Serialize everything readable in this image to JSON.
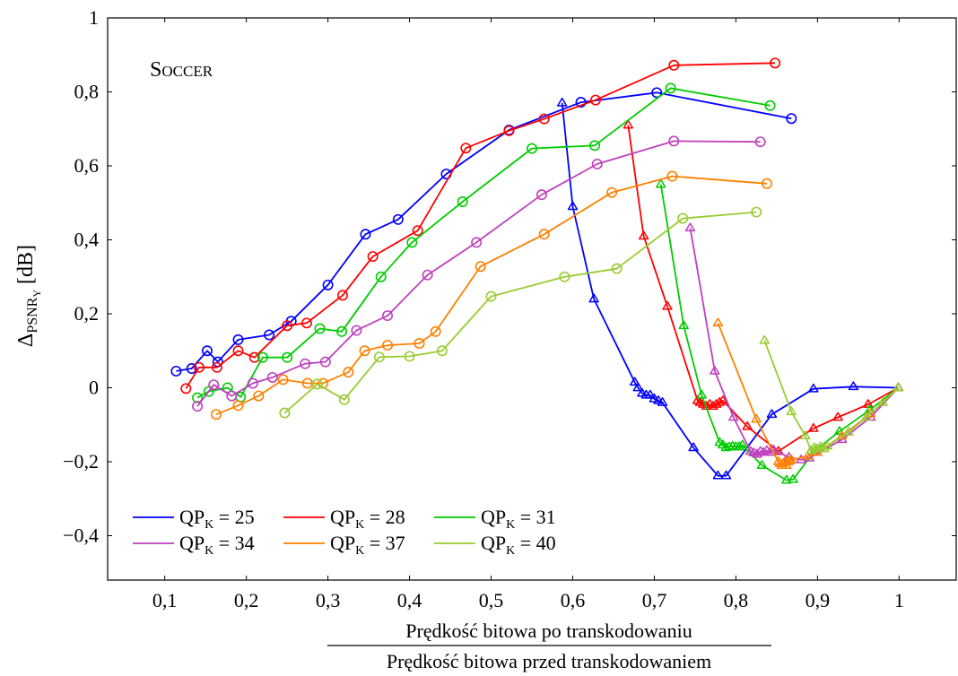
{
  "chart_data": {
    "type": "line",
    "annotation": {
      "main": "S",
      "rest": "OCCER"
    },
    "ylabel": {
      "main": "Δ",
      "sub": "PSNR",
      "subsub": "Y",
      "unit": "[dB]"
    },
    "xlabel": {
      "numerator": "Prędkość bitowa po transkodowaniu",
      "denominator": "Prędkość bitowa przed transkodowaniem"
    },
    "xlim": [
      0.03,
      1.07
    ],
    "ylim": [
      -0.52,
      1.0
    ],
    "xticks": [
      0.1,
      0.2,
      0.3,
      0.4,
      0.5,
      0.6,
      0.7,
      0.8,
      0.9,
      1
    ],
    "xtick_labels": [
      "0,1",
      "0,2",
      "0,3",
      "0,4",
      "0,5",
      "0,6",
      "0,7",
      "0,8",
      "0,9",
      "1"
    ],
    "yticks": [
      -0.4,
      -0.2,
      0,
      0.2,
      0.4,
      0.6,
      0.8,
      1
    ],
    "ytick_labels": [
      "−0,4",
      "−0,2",
      "0",
      "0,2",
      "0,4",
      "0,6",
      "0,8",
      "1"
    ],
    "legend_position": "bottom-left",
    "series": [
      {
        "name": "QP_K = 25",
        "label_main": "QP",
        "label_sub": "K",
        "label_val": " = 25",
        "color": "#0000ff",
        "circles": [
          [
            0.114,
            0.045
          ],
          [
            0.133,
            0.052
          ],
          [
            0.152,
            0.1
          ],
          [
            0.165,
            0.07
          ],
          [
            0.19,
            0.13
          ],
          [
            0.228,
            0.143
          ],
          [
            0.255,
            0.18
          ],
          [
            0.3,
            0.278
          ],
          [
            0.346,
            0.415
          ],
          [
            0.386,
            0.455
          ],
          [
            0.445,
            0.578
          ],
          [
            0.522,
            0.697
          ],
          [
            0.61,
            0.772
          ],
          [
            0.703,
            0.798
          ],
          [
            0.868,
            0.728
          ]
        ],
        "triangles": [
          [
            0.587,
            0.77
          ],
          [
            0.6,
            0.49
          ],
          [
            0.626,
            0.24
          ],
          [
            0.676,
            0.015
          ],
          [
            0.68,
            0.0
          ],
          [
            0.685,
            -0.015
          ],
          [
            0.69,
            -0.02
          ],
          [
            0.695,
            -0.02
          ],
          [
            0.7,
            -0.03
          ],
          [
            0.705,
            -0.035
          ],
          [
            0.71,
            -0.04
          ],
          [
            0.748,
            -0.162
          ],
          [
            0.778,
            -0.238
          ],
          [
            0.788,
            -0.238
          ],
          [
            0.844,
            -0.072
          ],
          [
            0.895,
            -0.003
          ],
          [
            0.944,
            0.003
          ],
          [
            0.999,
            0.0
          ]
        ]
      },
      {
        "name": "QP_K = 28",
        "label_main": "QP",
        "label_sub": "K",
        "label_val": " = 28",
        "color": "#ff0000",
        "circles": [
          [
            0.126,
            -0.002
          ],
          [
            0.142,
            0.055
          ],
          [
            0.164,
            0.055
          ],
          [
            0.19,
            0.1
          ],
          [
            0.21,
            0.082
          ],
          [
            0.25,
            0.168
          ],
          [
            0.274,
            0.175
          ],
          [
            0.318,
            0.25
          ],
          [
            0.355,
            0.355
          ],
          [
            0.41,
            0.425
          ],
          [
            0.469,
            0.648
          ],
          [
            0.522,
            0.695
          ],
          [
            0.565,
            0.727
          ],
          [
            0.628,
            0.778
          ],
          [
            0.724,
            0.872
          ],
          [
            0.848,
            0.878
          ]
        ],
        "triangles": [
          [
            0.668,
            0.71
          ],
          [
            0.687,
            0.41
          ],
          [
            0.716,
            0.22
          ],
          [
            0.753,
            -0.035
          ],
          [
            0.756,
            -0.04
          ],
          [
            0.76,
            -0.045
          ],
          [
            0.764,
            -0.05
          ],
          [
            0.768,
            -0.045
          ],
          [
            0.772,
            -0.05
          ],
          [
            0.776,
            -0.045
          ],
          [
            0.78,
            -0.04
          ],
          [
            0.784,
            -0.035
          ],
          [
            0.814,
            -0.105
          ],
          [
            0.852,
            -0.172
          ],
          [
            0.895,
            -0.11
          ],
          [
            0.925,
            -0.08
          ],
          [
            0.962,
            -0.045
          ],
          [
            0.999,
            0.0
          ]
        ]
      },
      {
        "name": "QP_K = 31",
        "label_main": "QP",
        "label_sub": "K",
        "label_val": " = 31",
        "color": "#00cc00",
        "circles": [
          [
            0.14,
            -0.027
          ],
          [
            0.154,
            -0.01
          ],
          [
            0.177,
            0.0
          ],
          [
            0.193,
            -0.025
          ],
          [
            0.22,
            0.082
          ],
          [
            0.25,
            0.082
          ],
          [
            0.29,
            0.16
          ],
          [
            0.317,
            0.152
          ],
          [
            0.365,
            0.3
          ],
          [
            0.403,
            0.393
          ],
          [
            0.465,
            0.503
          ],
          [
            0.55,
            0.647
          ],
          [
            0.627,
            0.655
          ],
          [
            0.72,
            0.81
          ],
          [
            0.842,
            0.763
          ]
        ],
        "triangles": [
          [
            0.708,
            0.55
          ],
          [
            0.736,
            0.168
          ],
          [
            0.758,
            -0.02
          ],
          [
            0.78,
            -0.148
          ],
          [
            0.784,
            -0.155
          ],
          [
            0.788,
            -0.162
          ],
          [
            0.792,
            -0.16
          ],
          [
            0.796,
            -0.158
          ],
          [
            0.8,
            -0.16
          ],
          [
            0.804,
            -0.16
          ],
          [
            0.808,
            -0.155
          ],
          [
            0.832,
            -0.21
          ],
          [
            0.862,
            -0.25
          ],
          [
            0.87,
            -0.248
          ],
          [
            0.897,
            -0.17
          ],
          [
            0.927,
            -0.118
          ],
          [
            0.964,
            -0.06
          ],
          [
            0.999,
            0.0
          ]
        ]
      },
      {
        "name": "QP_K = 34",
        "label_main": "QP",
        "label_sub": "K",
        "label_val": " = 34",
        "color": "#bf40bf",
        "circles": [
          [
            0.14,
            -0.05
          ],
          [
            0.16,
            0.008
          ],
          [
            0.182,
            -0.022
          ],
          [
            0.208,
            0.012
          ],
          [
            0.232,
            0.028
          ],
          [
            0.272,
            0.065
          ],
          [
            0.297,
            0.07
          ],
          [
            0.335,
            0.155
          ],
          [
            0.373,
            0.195
          ],
          [
            0.422,
            0.305
          ],
          [
            0.482,
            0.393
          ],
          [
            0.562,
            0.522
          ],
          [
            0.63,
            0.605
          ],
          [
            0.724,
            0.667
          ],
          [
            0.83,
            0.665
          ]
        ],
        "triangles": [
          [
            0.744,
            0.432
          ],
          [
            0.774,
            0.045
          ],
          [
            0.797,
            -0.08
          ],
          [
            0.818,
            -0.172
          ],
          [
            0.822,
            -0.176
          ],
          [
            0.826,
            -0.18
          ],
          [
            0.83,
            -0.172
          ],
          [
            0.834,
            -0.175
          ],
          [
            0.838,
            -0.17
          ],
          [
            0.842,
            -0.175
          ],
          [
            0.846,
            -0.168
          ],
          [
            0.865,
            -0.188
          ],
          [
            0.88,
            -0.195
          ],
          [
            0.89,
            -0.19
          ],
          [
            0.93,
            -0.14
          ],
          [
            0.965,
            -0.08
          ],
          [
            0.999,
            0.0
          ]
        ]
      },
      {
        "name": "QP_K = 37",
        "label_main": "QP",
        "label_sub": "K",
        "label_val": " = 37",
        "color": "#ff8000",
        "circles": [
          [
            0.163,
            -0.072
          ],
          [
            0.19,
            -0.048
          ],
          [
            0.215,
            -0.022
          ],
          [
            0.245,
            0.022
          ],
          [
            0.275,
            0.012
          ],
          [
            0.294,
            0.012
          ],
          [
            0.325,
            0.042
          ],
          [
            0.345,
            0.1
          ],
          [
            0.373,
            0.115
          ],
          [
            0.412,
            0.12
          ],
          [
            0.432,
            0.152
          ],
          [
            0.487,
            0.328
          ],
          [
            0.565,
            0.415
          ],
          [
            0.648,
            0.528
          ],
          [
            0.722,
            0.572
          ],
          [
            0.838,
            0.552
          ]
        ],
        "triangles": [
          [
            0.778,
            0.175
          ],
          [
            0.825,
            -0.085
          ],
          [
            0.852,
            -0.2
          ],
          [
            0.854,
            -0.205
          ],
          [
            0.856,
            -0.21
          ],
          [
            0.858,
            -0.205
          ],
          [
            0.86,
            -0.2
          ],
          [
            0.862,
            -0.21
          ],
          [
            0.864,
            -0.2
          ],
          [
            0.866,
            -0.198
          ],
          [
            0.868,
            -0.195
          ],
          [
            0.888,
            -0.185
          ],
          [
            0.9,
            -0.175
          ],
          [
            0.93,
            -0.13
          ],
          [
            0.965,
            -0.07
          ],
          [
            0.999,
            0.0
          ]
        ]
      },
      {
        "name": "QP_K = 40",
        "label_main": "QP",
        "label_sub": "K",
        "label_val": " = 40",
        "color": "#99cc33",
        "circles": [
          [
            0.247,
            -0.068
          ],
          [
            0.287,
            0.01
          ],
          [
            0.32,
            -0.032
          ],
          [
            0.363,
            0.083
          ],
          [
            0.4,
            0.085
          ],
          [
            0.44,
            0.1
          ],
          [
            0.5,
            0.247
          ],
          [
            0.59,
            0.3
          ],
          [
            0.654,
            0.322
          ],
          [
            0.735,
            0.458
          ],
          [
            0.825,
            0.475
          ]
        ],
        "triangles": [
          [
            0.835,
            0.128
          ],
          [
            0.868,
            -0.065
          ],
          [
            0.885,
            -0.13
          ],
          [
            0.892,
            -0.17
          ],
          [
            0.896,
            -0.162
          ],
          [
            0.9,
            -0.165
          ],
          [
            0.904,
            -0.16
          ],
          [
            0.908,
            -0.165
          ],
          [
            0.912,
            -0.158
          ],
          [
            0.938,
            -0.12
          ],
          [
            0.96,
            -0.08
          ],
          [
            0.98,
            -0.04
          ],
          [
            0.999,
            0.0
          ]
        ]
      }
    ]
  }
}
